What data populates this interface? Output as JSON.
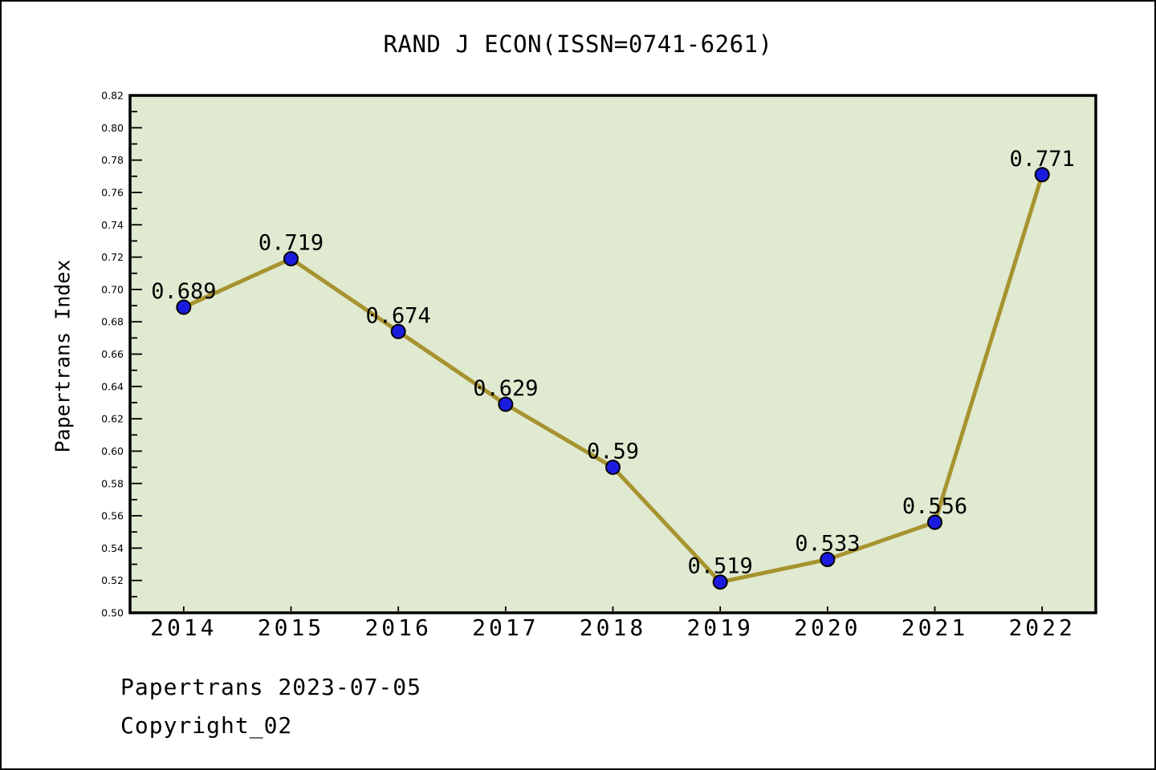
{
  "chart_data": {
    "type": "line",
    "title": "RAND J ECON(ISSN=0741-6261)",
    "ylabel": "Papertrans Index",
    "xlabel": "",
    "x": [
      "2014",
      "2015",
      "2016",
      "2017",
      "2018",
      "2019",
      "2020",
      "2021",
      "2022"
    ],
    "series": [
      {
        "name": "Papertrans Index",
        "values": [
          0.689,
          0.719,
          0.674,
          0.629,
          0.59,
          0.519,
          0.533,
          0.556,
          0.771
        ],
        "point_labels": [
          "0.689",
          "0.719",
          "0.674",
          "0.629",
          "0.59",
          "0.519",
          "0.533",
          "0.556",
          "0.771"
        ]
      }
    ],
    "ylim": [
      0.5,
      0.82
    ],
    "ytick_major_step": 0.02,
    "ytick_minor_step": 0.01,
    "grid": false,
    "legend_position": "none",
    "colors": {
      "plot_background": "#e0ead1",
      "line": "#a7932f",
      "marker_fill": "#1b1be0",
      "marker_edge": "#000000",
      "axis": "#000000",
      "text": "#000000",
      "page_background": "#ffffff"
    }
  },
  "footer": {
    "line1": "Papertrans 2023-07-05",
    "line2": "Copyright_02"
  }
}
